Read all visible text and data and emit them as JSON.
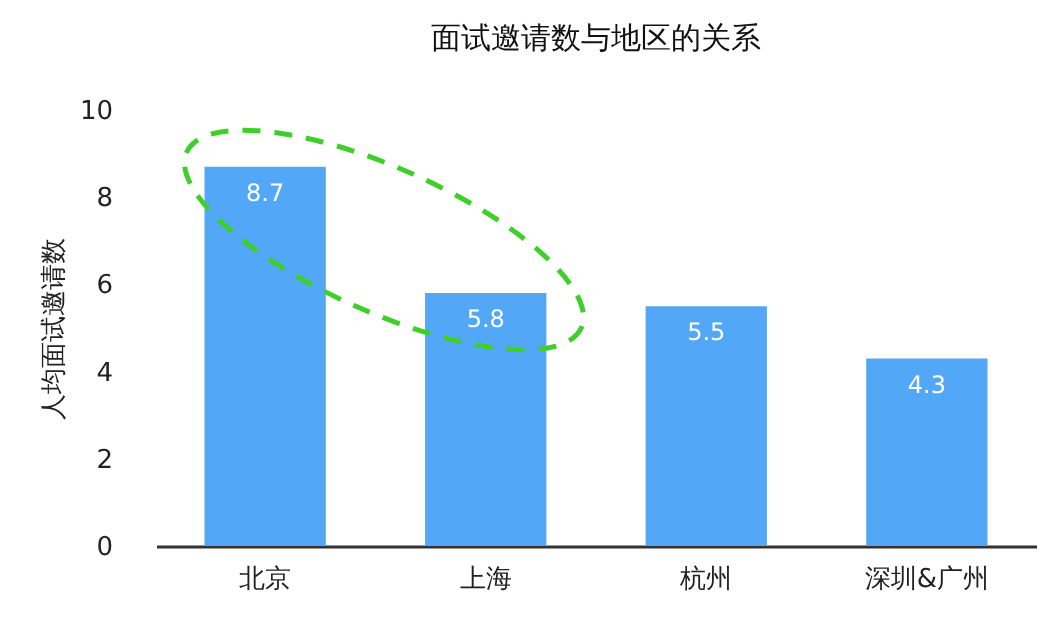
{
  "chart_data": {
    "type": "bar",
    "title": "面试邀请数与地区的关系",
    "ylabel": "人均面试邀请数",
    "categories": [
      "北京",
      "上海",
      "杭州",
      "深圳&广州"
    ],
    "values": [
      8.7,
      5.8,
      5.5,
      4.3
    ],
    "color": "#52a8f7",
    "ylim": [
      0,
      10
    ],
    "yticks": [
      0,
      2,
      4,
      6,
      8,
      10
    ],
    "grid": false,
    "data_labels": true
  }
}
